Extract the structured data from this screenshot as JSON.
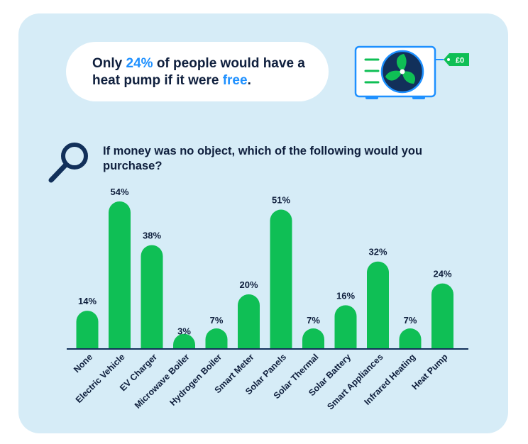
{
  "headline": {
    "prefix": "Only ",
    "percent": "24%",
    "middle": " of people would have a heat pump if it were ",
    "free": "free",
    "suffix": "."
  },
  "price_tag": "£0",
  "question": "If money was no object, which of the following would you purchase?",
  "icons": [
    "magnifying-glass-icon",
    "heat-pump-unit-icon",
    "fan-icon",
    "price-tag-icon"
  ],
  "colors": {
    "background": "#d6ecf7",
    "bar": "#0fbf55",
    "text": "#0f1f3d",
    "accent": "#1e90ff"
  },
  "chart_data": {
    "type": "bar",
    "title": "",
    "xlabel": "",
    "ylabel": "",
    "categories": [
      "None",
      "Electric Vehicle",
      "EV Charger",
      "Microwave Boiler",
      "Hydrogen Boiler",
      "Smart Meter",
      "Solar Panels",
      "Solar Thermal",
      "Solar Battery",
      "Smart Appliances",
      "Infrared Heating",
      "Heat Pump"
    ],
    "values": [
      14,
      54,
      38,
      3,
      7,
      20,
      51,
      7,
      16,
      32,
      7,
      24
    ],
    "value_labels": [
      "14%",
      "54%",
      "38%",
      "3%",
      "7%",
      "20%",
      "51%",
      "7%",
      "16%",
      "32%",
      "7%",
      "24%"
    ],
    "unit": "%",
    "ylim": [
      0,
      54
    ],
    "grid": false,
    "legend": "none"
  }
}
